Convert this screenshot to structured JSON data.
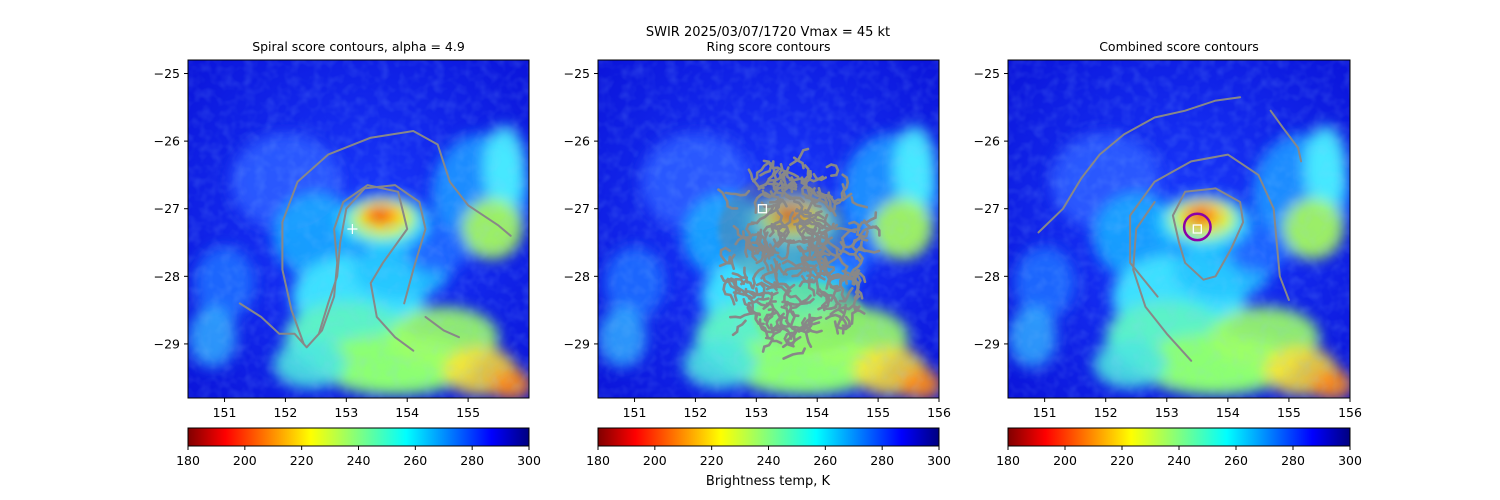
{
  "figure": {
    "suptitle_line1": "SWIR  2025/03/07/1720    Vmax = 45 kt",
    "colorbar_label": "Brightness temp, K"
  },
  "chart_data": [
    {
      "type": "heatmap",
      "title": "Spiral score contours, alpha =  4.9",
      "xlim": [
        150.4,
        156.0
      ],
      "ylim": [
        -29.8,
        -24.8
      ],
      "xticks": [
        151,
        152,
        153,
        154,
        155
      ],
      "yticks": [
        -25,
        -26,
        -27,
        -28,
        -29
      ],
      "center_marker": {
        "kind": "plus",
        "lon": 153.1,
        "lat": -27.3
      },
      "contours": [
        [
          [
            152.3,
            -29.0
          ],
          [
            152.1,
            -28.5
          ],
          [
            151.95,
            -27.9
          ],
          [
            151.95,
            -27.2
          ],
          [
            152.2,
            -26.6
          ],
          [
            152.7,
            -26.2
          ],
          [
            153.4,
            -25.95
          ],
          [
            154.1,
            -25.85
          ],
          [
            154.5,
            -26.05
          ],
          [
            154.7,
            -26.6
          ],
          [
            155.0,
            -26.95
          ],
          [
            155.5,
            -27.25
          ],
          [
            155.7,
            -27.4
          ]
        ],
        [
          [
            152.55,
            -28.85
          ],
          [
            152.7,
            -28.4
          ],
          [
            152.85,
            -28.0
          ],
          [
            152.9,
            -27.5
          ],
          [
            153.0,
            -27.0
          ],
          [
            153.3,
            -26.7
          ],
          [
            153.8,
            -26.65
          ],
          [
            154.2,
            -26.9
          ],
          [
            154.3,
            -27.3
          ],
          [
            154.1,
            -27.9
          ],
          [
            153.95,
            -28.4
          ]
        ],
        [
          [
            151.25,
            -28.4
          ],
          [
            151.6,
            -28.6
          ],
          [
            151.9,
            -28.85
          ],
          [
            152.15,
            -28.85
          ],
          [
            152.35,
            -29.05
          ],
          [
            152.6,
            -28.8
          ],
          [
            152.8,
            -28.3
          ],
          [
            152.85,
            -27.8
          ],
          [
            152.8,
            -27.3
          ],
          [
            152.95,
            -26.9
          ],
          [
            153.35,
            -26.65
          ],
          [
            153.85,
            -26.75
          ],
          [
            154.0,
            -27.3
          ],
          [
            153.6,
            -27.8
          ],
          [
            153.4,
            -28.1
          ],
          [
            153.5,
            -28.6
          ],
          [
            153.8,
            -28.9
          ],
          [
            154.1,
            -29.1
          ]
        ],
        [
          [
            154.3,
            -28.6
          ],
          [
            154.6,
            -28.8
          ],
          [
            154.85,
            -28.9
          ]
        ]
      ]
    },
    {
      "type": "heatmap",
      "title": "Ring score contours",
      "xlim": [
        150.4,
        156.0
      ],
      "ylim": [
        -29.8,
        -24.8
      ],
      "xticks": [
        151,
        152,
        153,
        154,
        155,
        156
      ],
      "yticks": [
        -25,
        -26,
        -27,
        -28,
        -29
      ],
      "center_marker": {
        "kind": "square",
        "lon": 153.1,
        "lat": -27.0
      },
      "contour_region": {
        "lon_min": 152.4,
        "lon_max": 154.95,
        "lat_min": -29.35,
        "lat_max": -26.05
      }
    },
    {
      "type": "heatmap",
      "title": "Combined score contours",
      "xlim": [
        150.4,
        156.0
      ],
      "ylim": [
        -29.8,
        -24.8
      ],
      "xticks": [
        151,
        152,
        153,
        154,
        155,
        156
      ],
      "yticks": [
        -25,
        -26,
        -27,
        -28,
        -29
      ],
      "center_marker": {
        "kind": "square",
        "lon": 153.5,
        "lat": -27.3
      },
      "best_center_circle": {
        "lon": 153.5,
        "lat": -27.27,
        "radius_deg": 0.2,
        "color": "#8b00a8"
      },
      "contours": [
        [
          [
            150.9,
            -27.35
          ],
          [
            151.3,
            -27.0
          ],
          [
            151.6,
            -26.55
          ],
          [
            151.9,
            -26.2
          ],
          [
            152.3,
            -25.9
          ],
          [
            152.8,
            -25.65
          ],
          [
            153.3,
            -25.55
          ],
          [
            153.8,
            -25.4
          ],
          [
            154.2,
            -25.35
          ]
        ],
        [
          [
            152.85,
            -28.3
          ],
          [
            152.4,
            -27.8
          ],
          [
            152.4,
            -27.1
          ],
          [
            152.8,
            -26.6
          ],
          [
            153.4,
            -26.3
          ],
          [
            154.0,
            -26.2
          ],
          [
            154.5,
            -26.5
          ],
          [
            154.75,
            -27.0
          ],
          [
            154.8,
            -27.5
          ],
          [
            154.85,
            -28.0
          ],
          [
            155.0,
            -28.35
          ]
        ],
        [
          [
            153.2,
            -27.5
          ],
          [
            153.1,
            -27.1
          ],
          [
            153.3,
            -26.75
          ],
          [
            153.8,
            -26.7
          ],
          [
            154.2,
            -26.9
          ],
          [
            154.25,
            -27.2
          ],
          [
            154.05,
            -27.6
          ],
          [
            153.8,
            -28.0
          ],
          [
            153.6,
            -28.05
          ],
          [
            153.3,
            -27.8
          ],
          [
            153.2,
            -27.5
          ]
        ],
        [
          [
            153.4,
            -29.25
          ],
          [
            153.0,
            -28.85
          ],
          [
            152.65,
            -28.45
          ],
          [
            152.45,
            -27.9
          ],
          [
            152.5,
            -27.3
          ],
          [
            152.8,
            -26.9
          ]
        ],
        [
          [
            154.7,
            -25.55
          ],
          [
            154.9,
            -25.8
          ],
          [
            155.15,
            -26.1
          ],
          [
            155.2,
            -26.3
          ]
        ]
      ]
    }
  ],
  "colorbar": {
    "cmap": "jet_r",
    "vmin": 180,
    "vmax": 300,
    "ticks": [
      180,
      200,
      220,
      240,
      260,
      280,
      300
    ]
  }
}
